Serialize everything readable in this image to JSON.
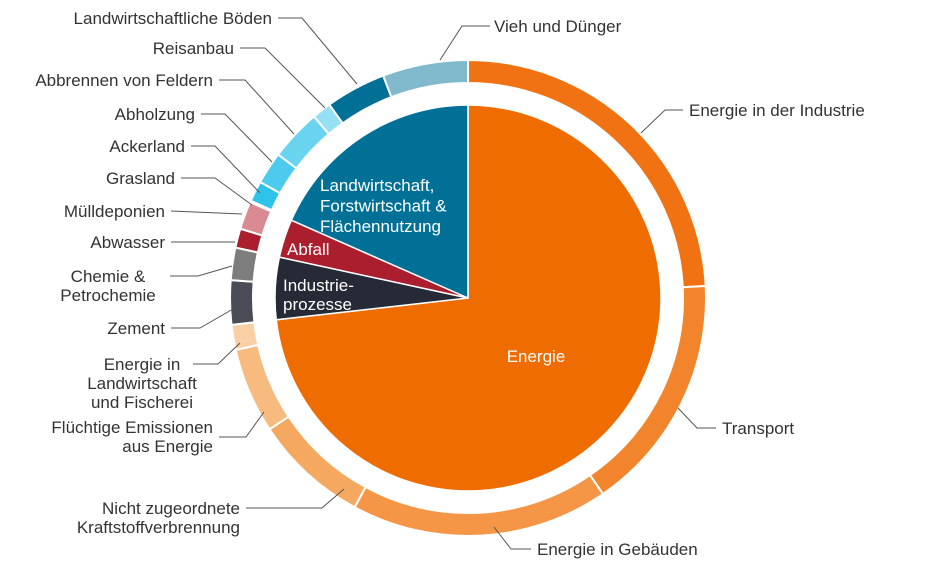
{
  "chart_data": {
    "type": "pie",
    "title": "",
    "unit": "%",
    "inner": [
      {
        "label": "Energie",
        "value": 73.2,
        "color": "#ef6c00",
        "lines": [
          "Energie"
        ]
      },
      {
        "label": "Industrieprozesse",
        "value": 5.2,
        "color": "#252a36",
        "lines": [
          "Industrie-",
          "prozesse"
        ]
      },
      {
        "label": "Abfall",
        "value": 3.2,
        "color": "#ab1e2e",
        "lines": [
          "Abfall"
        ]
      },
      {
        "label": "Landwirtschaft, Forstwirtschaft & Flächennutzung",
        "value": 18.4,
        "color": "#007096",
        "lines": [
          "Landwirtschaft,",
          "Forstwirtschaft &",
          "Flächennutzung"
        ]
      }
    ],
    "outer": [
      {
        "label": "Energie in der Industrie",
        "value": 24.2,
        "color": "#f07212",
        "lines": [
          "Energie in der Industrie"
        ]
      },
      {
        "label": "Transport",
        "value": 16.2,
        "color": "#f2842c",
        "lines": [
          "Transport"
        ]
      },
      {
        "label": "Energie in Gebäuden",
        "value": 17.5,
        "color": "#f49645",
        "lines": [
          "Energie in Gebäuden"
        ]
      },
      {
        "label": "Nicht zugeordnete Kraftstoffverbrennung",
        "value": 7.8,
        "color": "#f5a860",
        "lines": [
          "Nicht zugeordnete",
          "Kraftstoffverbrennung"
        ]
      },
      {
        "label": "Flüchtige Emissionen aus Energie",
        "value": 5.8,
        "color": "#f7bb80",
        "lines": [
          "Flüchtige Emissionen",
          "aus Energie"
        ]
      },
      {
        "label": "Energie in Landwirtschaft und Fischerei",
        "value": 1.7,
        "color": "#f9cfa6",
        "lines": [
          "Energie in",
          "Landwirtschaft",
          "und Fischerei"
        ]
      },
      {
        "label": "Zement",
        "value": 3.0,
        "color": "#4a4d57",
        "lines": [
          "Zement"
        ]
      },
      {
        "label": "Chemie & Petrochemie",
        "value": 2.2,
        "color": "#7d7d7d",
        "lines": [
          "Chemie &",
          "Petrochemie"
        ]
      },
      {
        "label": "Abwasser",
        "value": 1.3,
        "color": "#ab1e2e",
        "lines": [
          "Abwasser"
        ]
      },
      {
        "label": "Mülldeponien",
        "value": 1.9,
        "color": "#d98a92",
        "lines": [
          "Mülldeponien"
        ]
      },
      {
        "label": "Grasland",
        "value": 0.1,
        "color": "#1a9ed0",
        "lines": [
          "Grasland"
        ]
      },
      {
        "label": "Ackerland",
        "value": 1.4,
        "color": "#2ec3ea",
        "lines": [
          "Ackerland"
        ]
      },
      {
        "label": "Abholzung",
        "value": 2.2,
        "color": "#4ccbee",
        "lines": [
          "Abholzung"
        ]
      },
      {
        "label": "Abbrennen von Feldern",
        "value": 3.5,
        "color": "#6ad4f0",
        "lines": [
          "Abbrennen von Feldern"
        ]
      },
      {
        "label": "Reisanbau",
        "value": 1.3,
        "color": "#96e0f6",
        "lines": [
          "Reisanbau"
        ]
      },
      {
        "label": "Landwirtschaftliche Böden",
        "value": 4.1,
        "color": "#007096",
        "lines": [
          "Landwirtschaftliche Böden"
        ]
      },
      {
        "label": "Vieh und Dünger",
        "value": 5.8,
        "color": "#80b9cb",
        "lines": [
          "Vieh und Dünger"
        ]
      }
    ],
    "legend": "none"
  }
}
